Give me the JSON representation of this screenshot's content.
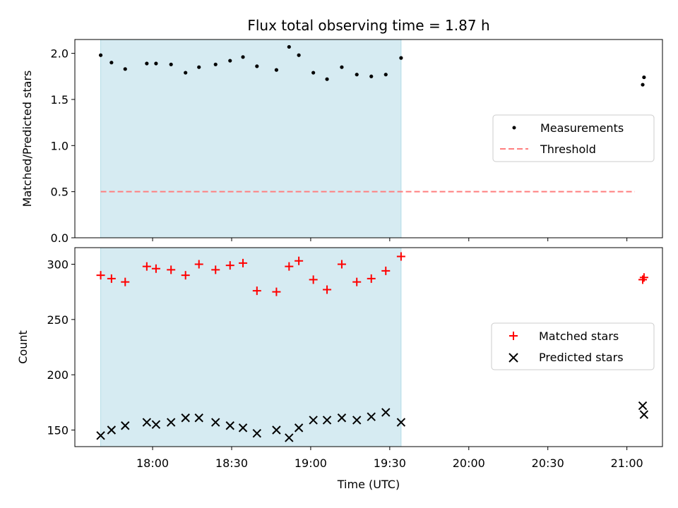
{
  "chart_data": {
    "title": "Flux total observing time = 1.87 h",
    "xlabel": "Time (UTC)",
    "x_unit": "minutes since 00:00 UTC",
    "xlim": [
      1050.5,
      1273.5
    ],
    "x_ticks": [
      {
        "value": 1080,
        "label": "18:00"
      },
      {
        "value": 1110,
        "label": "18:30"
      },
      {
        "value": 1140,
        "label": "19:00"
      },
      {
        "value": 1170,
        "label": "19:30"
      },
      {
        "value": 1200,
        "label": "20:00"
      },
      {
        "value": 1230,
        "label": "20:30"
      },
      {
        "value": 1260,
        "label": "21:00"
      }
    ],
    "shaded_interval": {
      "start": 1060.3,
      "end": 1174.3,
      "color": "#add8e6"
    },
    "panels": [
      {
        "type": "scatter",
        "ylabel": "Matched/Predicted stars",
        "ylim": [
          0,
          2.15
        ],
        "y_ticks": [
          {
            "value": 0,
            "label": "0.0"
          },
          {
            "value": 0.5,
            "label": "0.5"
          },
          {
            "value": 1.0,
            "label": "1.0"
          },
          {
            "value": 1.5,
            "label": "1.5"
          },
          {
            "value": 2.0,
            "label": "2.0"
          }
        ],
        "legend_position": "center-right",
        "series": [
          {
            "name": "Measurements",
            "marker": "dot",
            "color": "#000000",
            "points": [
              [
                1060.3,
                1.98
              ],
              [
                1064.4,
                1.9
              ],
              [
                1069.6,
                1.83
              ],
              [
                1077.8,
                1.89
              ],
              [
                1081.3,
                1.89
              ],
              [
                1087.0,
                1.88
              ],
              [
                1092.5,
                1.79
              ],
              [
                1097.6,
                1.85
              ],
              [
                1103.9,
                1.88
              ],
              [
                1109.4,
                1.92
              ],
              [
                1114.3,
                1.96
              ],
              [
                1119.6,
                1.86
              ],
              [
                1127.0,
                1.82
              ],
              [
                1131.8,
                2.07
              ],
              [
                1135.5,
                1.98
              ],
              [
                1141.0,
                1.79
              ],
              [
                1146.2,
                1.72
              ],
              [
                1151.8,
                1.85
              ],
              [
                1157.5,
                1.77
              ],
              [
                1163.0,
                1.75
              ],
              [
                1168.5,
                1.77
              ],
              [
                1174.3,
                1.95
              ],
              [
                1266.0,
                1.66
              ],
              [
                1266.5,
                1.74
              ]
            ]
          },
          {
            "name": "Threshold",
            "marker": "dashed-line",
            "color": "#ff7f7f",
            "x": [
              1060.3,
              1263.0
            ],
            "y": [
              0.5,
              0.5
            ]
          }
        ]
      },
      {
        "type": "scatter",
        "ylabel": "Count",
        "ylim": [
          135,
          315
        ],
        "y_ticks": [
          {
            "value": 150,
            "label": "150"
          },
          {
            "value": 200,
            "label": "200"
          },
          {
            "value": 250,
            "label": "250"
          },
          {
            "value": 300,
            "label": "300"
          }
        ],
        "legend_position": "center-right",
        "series": [
          {
            "name": "Matched stars",
            "marker": "plus",
            "color": "#ff0000",
            "points": [
              [
                1060.3,
                290
              ],
              [
                1064.4,
                287
              ],
              [
                1069.6,
                284
              ],
              [
                1077.8,
                298
              ],
              [
                1081.3,
                296
              ],
              [
                1087.0,
                295
              ],
              [
                1092.5,
                290
              ],
              [
                1097.6,
                300
              ],
              [
                1103.9,
                295
              ],
              [
                1109.4,
                299
              ],
              [
                1114.3,
                301
              ],
              [
                1119.6,
                276
              ],
              [
                1127.0,
                275
              ],
              [
                1131.8,
                298
              ],
              [
                1135.5,
                303
              ],
              [
                1141.0,
                286
              ],
              [
                1146.2,
                277
              ],
              [
                1151.8,
                300
              ],
              [
                1157.5,
                284
              ],
              [
                1163.0,
                287
              ],
              [
                1168.5,
                294
              ],
              [
                1174.3,
                307
              ],
              [
                1266.0,
                286
              ],
              [
                1266.5,
                288
              ]
            ]
          },
          {
            "name": "Predicted stars",
            "marker": "x",
            "color": "#000000",
            "points": [
              [
                1060.3,
                145
              ],
              [
                1064.4,
                150
              ],
              [
                1069.6,
                154
              ],
              [
                1077.8,
                157
              ],
              [
                1081.3,
                155
              ],
              [
                1087.0,
                157
              ],
              [
                1092.5,
                161
              ],
              [
                1097.6,
                161
              ],
              [
                1103.9,
                157
              ],
              [
                1109.4,
                154
              ],
              [
                1114.3,
                152
              ],
              [
                1119.6,
                147
              ],
              [
                1127.0,
                150
              ],
              [
                1131.8,
                143
              ],
              [
                1135.5,
                152
              ],
              [
                1141.0,
                159
              ],
              [
                1146.2,
                159
              ],
              [
                1151.8,
                161
              ],
              [
                1157.5,
                159
              ],
              [
                1163.0,
                162
              ],
              [
                1168.5,
                166
              ],
              [
                1174.3,
                157
              ],
              [
                1266.0,
                172
              ],
              [
                1266.5,
                164
              ]
            ]
          }
        ]
      }
    ]
  }
}
